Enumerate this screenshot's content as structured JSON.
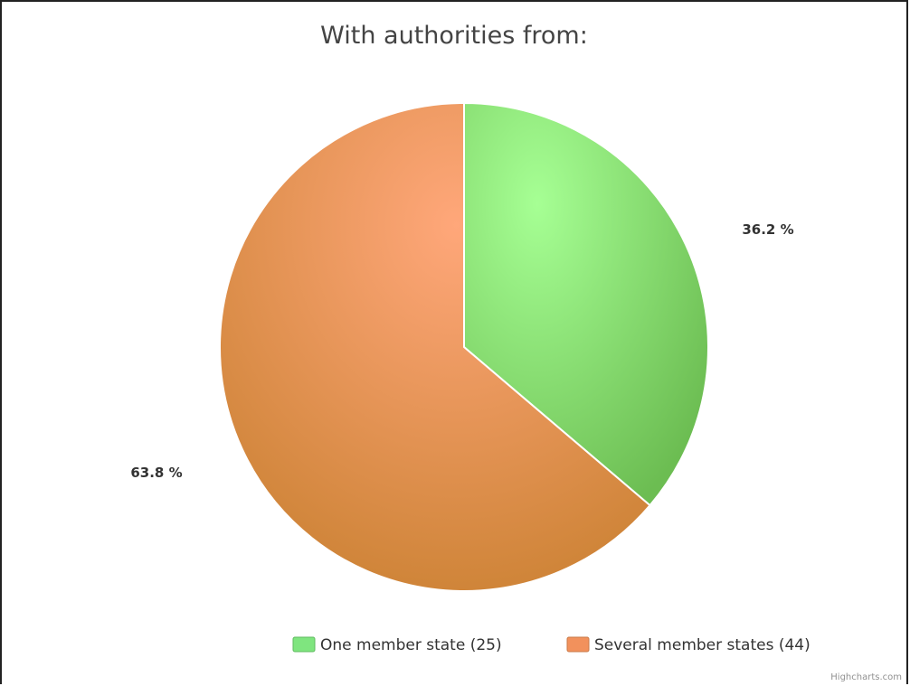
{
  "chart_data": {
    "type": "pie",
    "title": "With authorities from:",
    "categories": [
      "One member state (25)",
      "Several member states (44)"
    ],
    "values": [
      25,
      44
    ],
    "data_labels": [
      "36.2 %",
      "63.8 %"
    ],
    "colors": [
      "#7fe57f",
      "#f2915c"
    ],
    "legend_position": "bottom-right"
  },
  "credits": "Highcharts.com"
}
